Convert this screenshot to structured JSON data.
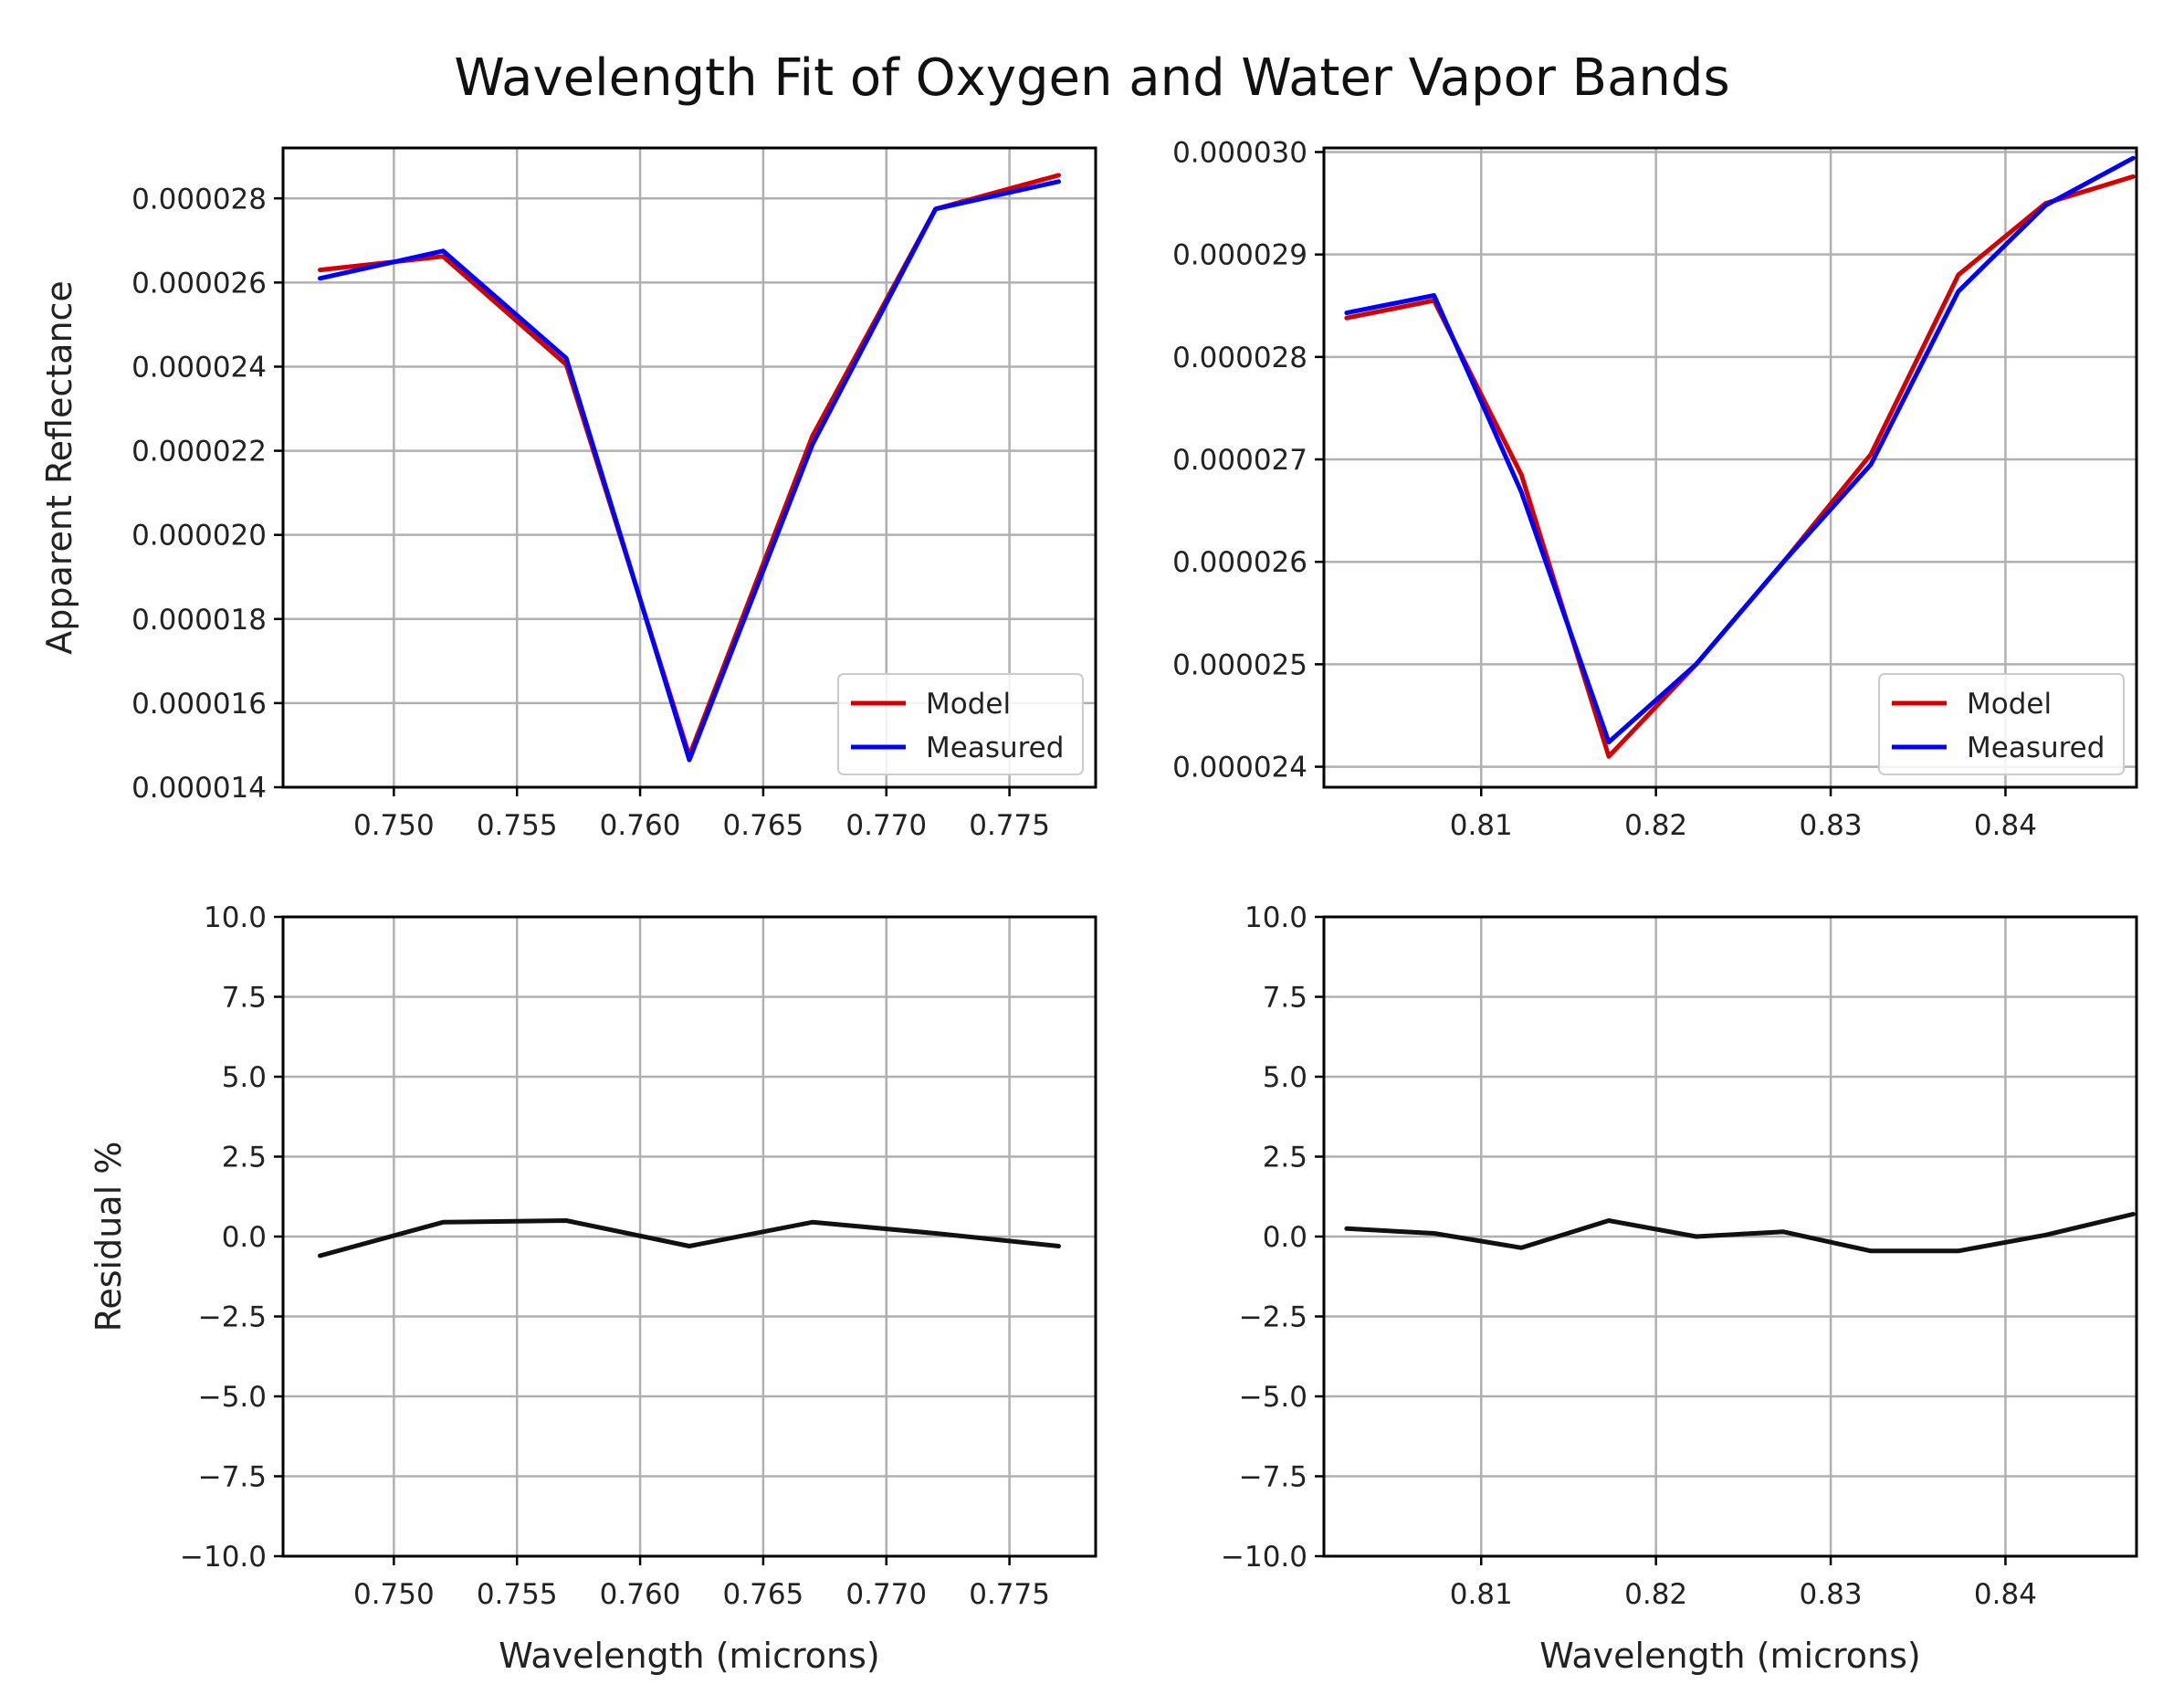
{
  "title": "Wavelength Fit of Oxygen and Water Vapor Bands",
  "chart_data": [
    {
      "type": "line",
      "panel": "top-left",
      "xlabel": "",
      "ylabel": "Apparent Reflectance",
      "xlim": [
        0.7455,
        0.7785
      ],
      "ylim": [
        1.4e-05,
        2.92e-05
      ],
      "xticks": [
        "0.750",
        "0.755",
        "0.760",
        "0.765",
        "0.770",
        "0.775"
      ],
      "xtick_values": [
        0.75,
        0.755,
        0.76,
        0.765,
        0.77,
        0.775
      ],
      "yticks": [
        "0.000014",
        "0.000016",
        "0.000018",
        "0.000020",
        "0.000022",
        "0.000024",
        "0.000026",
        "0.000028"
      ],
      "ytick_values": [
        1.4e-05,
        1.6e-05,
        1.8e-05,
        2e-05,
        2.2e-05,
        2.4e-05,
        2.6e-05,
        2.8e-05
      ],
      "grid": true,
      "legend": "lower-right",
      "x": [
        0.747,
        0.752,
        0.757,
        0.762,
        0.767,
        0.772,
        0.777
      ],
      "series": [
        {
          "name": "Model",
          "color": "#d40000",
          "values": [
            2.63e-05,
            2.662e-05,
            2.405e-05,
            1.475e-05,
            2.235e-05,
            2.775e-05,
            2.855e-05
          ]
        },
        {
          "name": "Measured",
          "color": "#0000ff",
          "values": [
            2.61e-05,
            2.675e-05,
            2.42e-05,
            1.465e-05,
            2.215e-05,
            2.775e-05,
            2.84e-05
          ]
        }
      ]
    },
    {
      "type": "line",
      "panel": "top-right",
      "xlabel": "",
      "ylabel": "",
      "xlim": [
        0.801,
        0.8475
      ],
      "ylim": [
        2.38e-05,
        3.004e-05
      ],
      "xticks": [
        "0.81",
        "0.82",
        "0.83",
        "0.84"
      ],
      "xtick_values": [
        0.81,
        0.82,
        0.83,
        0.84
      ],
      "yticks": [
        "0.000024",
        "0.000025",
        "0.000026",
        "0.000027",
        "0.000028",
        "0.000029",
        "0.000030"
      ],
      "ytick_values": [
        2.4e-05,
        2.5e-05,
        2.6e-05,
        2.7e-05,
        2.8e-05,
        2.9e-05,
        3e-05
      ],
      "grid": true,
      "legend": "lower-right",
      "x": [
        0.8023,
        0.8073,
        0.8123,
        0.8173,
        0.8223,
        0.8273,
        0.8323,
        0.8373,
        0.8423,
        0.8473
      ],
      "series": [
        {
          "name": "Model",
          "color": "#d40000",
          "values": [
            2.838e-05,
            2.855e-05,
            2.685e-05,
            2.41e-05,
            2.5e-05,
            2.6e-05,
            2.705e-05,
            2.88e-05,
            2.95e-05,
            2.976e-05
          ]
        },
        {
          "name": "Measured",
          "color": "#0000ff",
          "values": [
            2.843e-05,
            2.86e-05,
            2.668e-05,
            2.424e-05,
            2.5e-05,
            2.6e-05,
            2.695e-05,
            2.864e-05,
            2.948e-05,
            2.994e-05
          ]
        }
      ]
    },
    {
      "type": "line",
      "panel": "bottom-left",
      "xlabel": "Wavelength (microns)",
      "ylabel": "Residual %",
      "xlim": [
        0.7455,
        0.7785
      ],
      "ylim": [
        -10.0,
        10.0
      ],
      "xticks": [
        "0.750",
        "0.755",
        "0.760",
        "0.765",
        "0.770",
        "0.775"
      ],
      "xtick_values": [
        0.75,
        0.755,
        0.76,
        0.765,
        0.77,
        0.775
      ],
      "yticks": [
        "10.0",
        "7.5",
        "5.0",
        "2.5",
        "0.0",
        "−2.5",
        "−5.0",
        "−7.5",
        "−10.0"
      ],
      "ytick_values": [
        10.0,
        7.5,
        5.0,
        2.5,
        0.0,
        -2.5,
        -5.0,
        -7.5,
        -10.0
      ],
      "grid": true,
      "x": [
        0.747,
        0.752,
        0.757,
        0.762,
        0.767,
        0.772,
        0.777
      ],
      "series": [
        {
          "name": "Residual",
          "color": "#111111",
          "values": [
            -0.6,
            0.45,
            0.5,
            -0.3,
            0.45,
            0.1,
            -0.3
          ]
        }
      ]
    },
    {
      "type": "line",
      "panel": "bottom-right",
      "xlabel": "Wavelength (microns)",
      "ylabel": "",
      "xlim": [
        0.801,
        0.8475
      ],
      "ylim": [
        -10.0,
        10.0
      ],
      "xticks": [
        "0.81",
        "0.82",
        "0.83",
        "0.84"
      ],
      "xtick_values": [
        0.81,
        0.82,
        0.83,
        0.84
      ],
      "yticks": [
        "10.0",
        "7.5",
        "5.0",
        "2.5",
        "0.0",
        "−2.5",
        "−5.0",
        "−7.5",
        "−10.0"
      ],
      "ytick_values": [
        10.0,
        7.5,
        5.0,
        2.5,
        0.0,
        -2.5,
        -5.0,
        -7.5,
        -10.0
      ],
      "grid": true,
      "x": [
        0.8023,
        0.8073,
        0.8123,
        0.8173,
        0.8223,
        0.8273,
        0.8323,
        0.8373,
        0.8423,
        0.8473
      ],
      "series": [
        {
          "name": "Residual",
          "color": "#111111",
          "values": [
            0.25,
            0.1,
            -0.35,
            0.5,
            0.0,
            0.15,
            -0.45,
            -0.45,
            0.05,
            0.7
          ]
        }
      ]
    }
  ]
}
